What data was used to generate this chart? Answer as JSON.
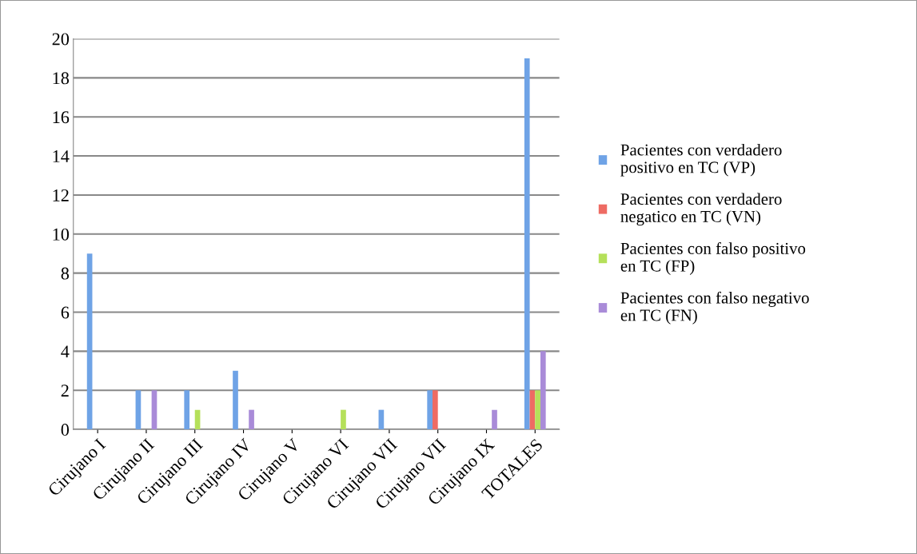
{
  "chart_data": {
    "type": "bar",
    "categories": [
      "Cirujano I",
      "Cirujano II",
      "Cirujano III",
      "Cirujano IV",
      "Cirujano V",
      "Cirujano VI",
      "Cirujano VII",
      "Cirujano VII",
      "Cirujano IX",
      "TOTALES"
    ],
    "series": [
      {
        "name": "Pacientes con verdadero positivo en TC (VP)",
        "color": "#6fa3e6",
        "values": [
          9,
          2,
          2,
          3,
          null,
          0,
          1,
          2,
          0,
          19
        ]
      },
      {
        "name": "Pacientes con verdadero negatico en TC (VN)",
        "color": "#ee6b63",
        "values": [
          0,
          0,
          0,
          0,
          null,
          0,
          0,
          2,
          0,
          2
        ]
      },
      {
        "name": "Pacientes con falso positivo en TC (FP)",
        "color": "#b5e05a",
        "values": [
          0,
          0,
          1,
          0,
          null,
          1,
          0,
          0,
          0,
          2
        ]
      },
      {
        "name": "Pacientes con falso negativo en TC (FN)",
        "color": "#a98bd8",
        "values": [
          0,
          2,
          0,
          1,
          null,
          0,
          0,
          0,
          1,
          4
        ]
      }
    ],
    "ylim": [
      0,
      20
    ],
    "yticks": [
      0,
      2,
      4,
      6,
      8,
      10,
      12,
      14,
      16,
      18,
      20
    ],
    "grid": "y",
    "legend": "right"
  }
}
